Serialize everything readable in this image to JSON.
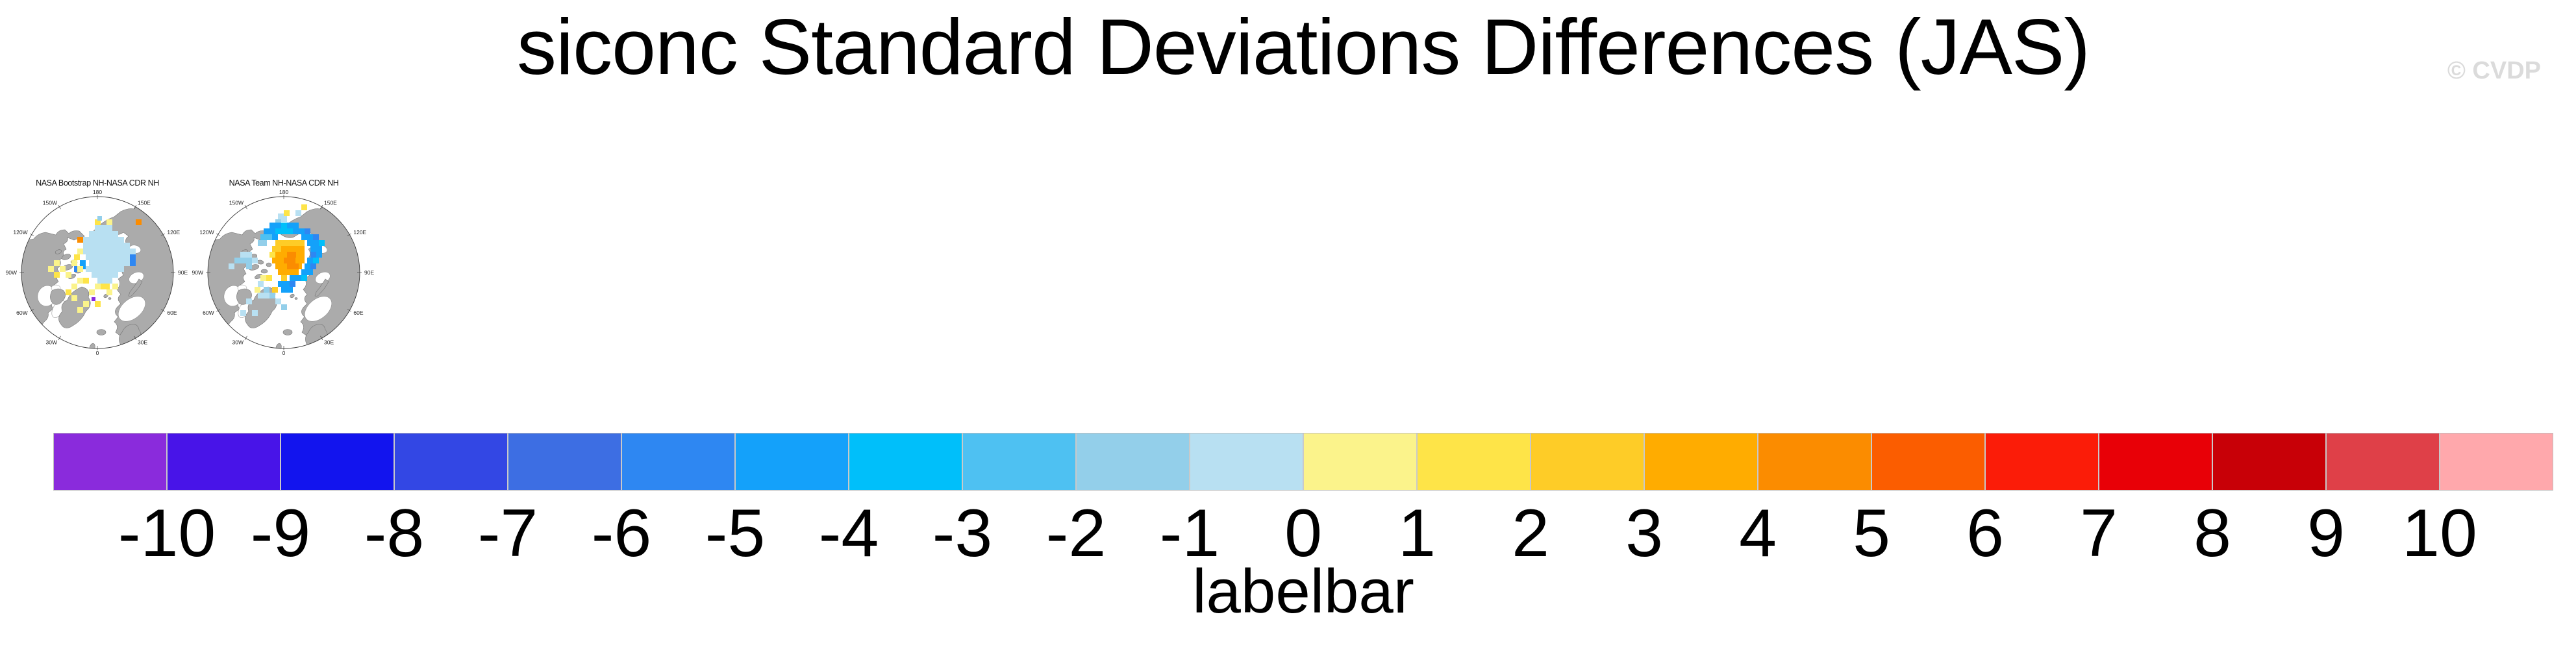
{
  "header": {
    "title": "siconc Standard Deviations Differences (JAS)",
    "watermark": "© CVDP",
    "watermark_color": "#DBDBDB"
  },
  "chart_data": {
    "type": "heatmap",
    "title": "siconc Standard Deviations Differences (JAS)",
    "season": "JAS",
    "variable": "siconc",
    "land_color": "#ABABAB",
    "ocean_color": "#FFFFFF",
    "panels": [
      {
        "title": "NASA Bootstrap NH-NASA CDR NH",
        "projection": "north-polar-stereographic",
        "lon_labels": [
          {
            "text": "180",
            "angle": 0
          },
          {
            "text": "150E",
            "angle": 30
          },
          {
            "text": "120E",
            "angle": 60
          },
          {
            "text": "90E",
            "angle": 90
          },
          {
            "text": "60E",
            "angle": 120
          },
          {
            "text": "30E",
            "angle": 150
          },
          {
            "text": "0",
            "angle": 180
          },
          {
            "text": "30W",
            "angle": 210
          },
          {
            "text": "60W",
            "angle": 240
          },
          {
            "text": "90W",
            "angle": 270
          },
          {
            "text": "120W",
            "angle": 300
          },
          {
            "text": "150W",
            "angle": 330
          }
        ],
        "cells": [
          [
            136,
            75,
            27,
            9,
            10
          ],
          [
            127,
            84,
            45,
            9,
            10
          ],
          [
            118,
            93,
            63,
            9,
            10
          ],
          [
            118,
            102,
            72,
            9,
            10
          ],
          [
            113,
            111,
            86,
            9,
            10
          ],
          [
            122,
            120,
            68,
            9,
            10
          ],
          [
            127,
            129,
            63,
            9,
            10
          ],
          [
            122,
            138,
            59,
            9,
            10
          ],
          [
            131,
            147,
            41,
            9,
            10
          ],
          [
            140,
            156,
            23,
            9,
            10
          ],
          [
            109,
            93,
            9,
            9,
            15
          ],
          [
            199,
            66,
            9,
            9,
            15
          ],
          [
            190,
            120,
            9,
            18,
            5
          ],
          [
            113,
            129,
            9,
            14,
            6
          ],
          [
            104,
            138,
            7,
            9,
            5
          ],
          [
            136,
            66,
            9,
            9,
            12
          ],
          [
            154,
            66,
            9,
            9,
            11
          ],
          [
            140,
            61,
            7,
            7,
            9
          ],
          [
            109,
            111,
            9,
            9,
            11
          ],
          [
            104,
            120,
            9,
            9,
            12
          ],
          [
            100,
            129,
            9,
            9,
            11
          ],
          [
            109,
            138,
            9,
            9,
            11
          ],
          [
            136,
            165,
            9,
            9,
            11
          ],
          [
            145,
            165,
            14,
            9,
            12
          ],
          [
            127,
            174,
            9,
            9,
            11
          ],
          [
            154,
            174,
            9,
            9,
            11
          ],
          [
            163,
            165,
            9,
            9,
            11
          ],
          [
            118,
            156,
            9,
            9,
            12
          ],
          [
            109,
            156,
            9,
            9,
            11
          ],
          [
            100,
            165,
            9,
            9,
            11
          ],
          [
            91,
            174,
            9,
            9,
            12
          ],
          [
            100,
            183,
            9,
            9,
            11
          ],
          [
            118,
            192,
            9,
            9,
            11
          ],
          [
            136,
            192,
            9,
            9,
            12
          ],
          [
            109,
            201,
            9,
            9,
            11
          ],
          [
            91,
            147,
            9,
            9,
            11
          ],
          [
            82,
            138,
            9,
            9,
            11
          ],
          [
            73,
            147,
            9,
            9,
            12
          ],
          [
            64,
            138,
            9,
            9,
            11
          ],
          [
            73,
            129,
            9,
            9,
            11
          ],
          [
            131,
            186,
            6,
            6,
            0
          ]
        ]
      },
      {
        "title": "NASA Team NH-NASA CDR NH",
        "projection": "north-polar-stereographic",
        "lon_labels": [
          {
            "text": "180",
            "angle": 0
          },
          {
            "text": "150E",
            "angle": 30
          },
          {
            "text": "120E",
            "angle": 60
          },
          {
            "text": "90E",
            "angle": 90
          },
          {
            "text": "60E",
            "angle": 120
          },
          {
            "text": "30E",
            "angle": 150
          },
          {
            "text": "0",
            "angle": 180
          },
          {
            "text": "30W",
            "angle": 210
          },
          {
            "text": "60W",
            "angle": 240
          },
          {
            "text": "90W",
            "angle": 270
          },
          {
            "text": "120W",
            "angle": 300
          },
          {
            "text": "150W",
            "angle": 330
          }
        ],
        "cells": [
          [
            127,
            66,
            9,
            9,
            9
          ],
          [
            136,
            61,
            9,
            9,
            10
          ],
          [
            118,
            71,
            18,
            9,
            6
          ],
          [
            136,
            71,
            9,
            9,
            7
          ],
          [
            145,
            71,
            18,
            9,
            6
          ],
          [
            109,
            80,
            18,
            9,
            6
          ],
          [
            127,
            80,
            27,
            9,
            7
          ],
          [
            154,
            80,
            18,
            9,
            6
          ],
          [
            172,
            80,
            9,
            9,
            5
          ],
          [
            104,
            89,
            18,
            9,
            8
          ],
          [
            122,
            89,
            9,
            9,
            6
          ],
          [
            167,
            89,
            18,
            9,
            6
          ],
          [
            185,
            89,
            9,
            9,
            5
          ],
          [
            100,
            98,
            14,
            9,
            9
          ],
          [
            176,
            98,
            18,
            9,
            6
          ],
          [
            194,
            98,
            9,
            9,
            7
          ],
          [
            181,
            107,
            18,
            9,
            6
          ],
          [
            181,
            116,
            9,
            9,
            5
          ],
          [
            190,
            116,
            9,
            9,
            6
          ],
          [
            176,
            125,
            9,
            9,
            6
          ],
          [
            185,
            125,
            9,
            9,
            7
          ],
          [
            172,
            134,
            9,
            9,
            6
          ],
          [
            181,
            134,
            9,
            9,
            5
          ],
          [
            167,
            143,
            9,
            9,
            6
          ],
          [
            176,
            143,
            9,
            9,
            6
          ],
          [
            167,
            152,
            9,
            9,
            7
          ],
          [
            149,
            152,
            18,
            9,
            6
          ],
          [
            131,
            161,
            18,
            9,
            6
          ],
          [
            149,
            161,
            9,
            9,
            5
          ],
          [
            136,
            170,
            18,
            9,
            6
          ],
          [
            127,
            98,
            45,
            9,
            13
          ],
          [
            122,
            107,
            14,
            9,
            13
          ],
          [
            136,
            107,
            36,
            9,
            14
          ],
          [
            118,
            116,
            9,
            9,
            12
          ],
          [
            127,
            116,
            45,
            9,
            14
          ],
          [
            145,
            116,
            14,
            9,
            15
          ],
          [
            122,
            125,
            50,
            9,
            14
          ],
          [
            140,
            125,
            18,
            9,
            15
          ],
          [
            127,
            134,
            41,
            9,
            14
          ],
          [
            145,
            134,
            18,
            9,
            15
          ],
          [
            131,
            143,
            32,
            9,
            14
          ],
          [
            136,
            152,
            9,
            9,
            13
          ],
          [
            73,
            116,
            18,
            9,
            10
          ],
          [
            64,
            125,
            27,
            9,
            9
          ],
          [
            91,
            125,
            9,
            9,
            10
          ],
          [
            55,
            134,
            9,
            9,
            10
          ],
          [
            82,
            134,
            9,
            9,
            9
          ],
          [
            100,
            161,
            9,
            9,
            10
          ],
          [
            109,
            170,
            9,
            9,
            9
          ],
          [
            100,
            179,
            18,
            9,
            10
          ],
          [
            118,
            179,
            9,
            9,
            9
          ],
          [
            82,
            188,
            9,
            9,
            10
          ],
          [
            127,
            188,
            9,
            9,
            10
          ],
          [
            136,
            197,
            9,
            9,
            9
          ],
          [
            73,
            206,
            9,
            9,
            10
          ],
          [
            91,
            206,
            9,
            9,
            10
          ],
          [
            113,
            152,
            9,
            9,
            12
          ],
          [
            104,
            152,
            9,
            9,
            11
          ],
          [
            122,
            170,
            9,
            9,
            13
          ],
          [
            95,
            170,
            9,
            9,
            11
          ],
          [
            167,
            43,
            9,
            9,
            12
          ],
          [
            158,
            52,
            9,
            9,
            10
          ],
          [
            140,
            52,
            9,
            9,
            12
          ],
          [
            131,
            57,
            9,
            9,
            10
          ]
        ]
      }
    ],
    "colorbar": {
      "label": "labelbar",
      "levels": [
        -10,
        -9,
        -8,
        -7,
        -6,
        -5,
        -4,
        -3,
        -2,
        -1,
        0,
        1,
        2,
        3,
        4,
        5,
        6,
        7,
        8,
        9,
        10
      ],
      "tick_labels": [
        "-10",
        "-9",
        "-8",
        "-7",
        "-6",
        "-5",
        "-4",
        "-3",
        "-2",
        "-1",
        "0",
        "1",
        "2",
        "3",
        "4",
        "5",
        "6",
        "7",
        "8",
        "9",
        "10"
      ],
      "colors": [
        "#8A2BDC",
        "#4814E8",
        "#1214EE",
        "#3347E4",
        "#3D6EE3",
        "#2E87F2",
        "#14A1FA",
        "#00BFFA",
        "#4EC1F2",
        "#93CFEA",
        "#B8E0F2",
        "#FBF38B",
        "#FEE448",
        "#FECC27",
        "#FFAC00",
        "#FB8C00",
        "#FB5D00",
        "#FB1C08",
        "#E80007",
        "#C80007",
        "#DF4048",
        "#FFA8AC"
      ]
    }
  }
}
